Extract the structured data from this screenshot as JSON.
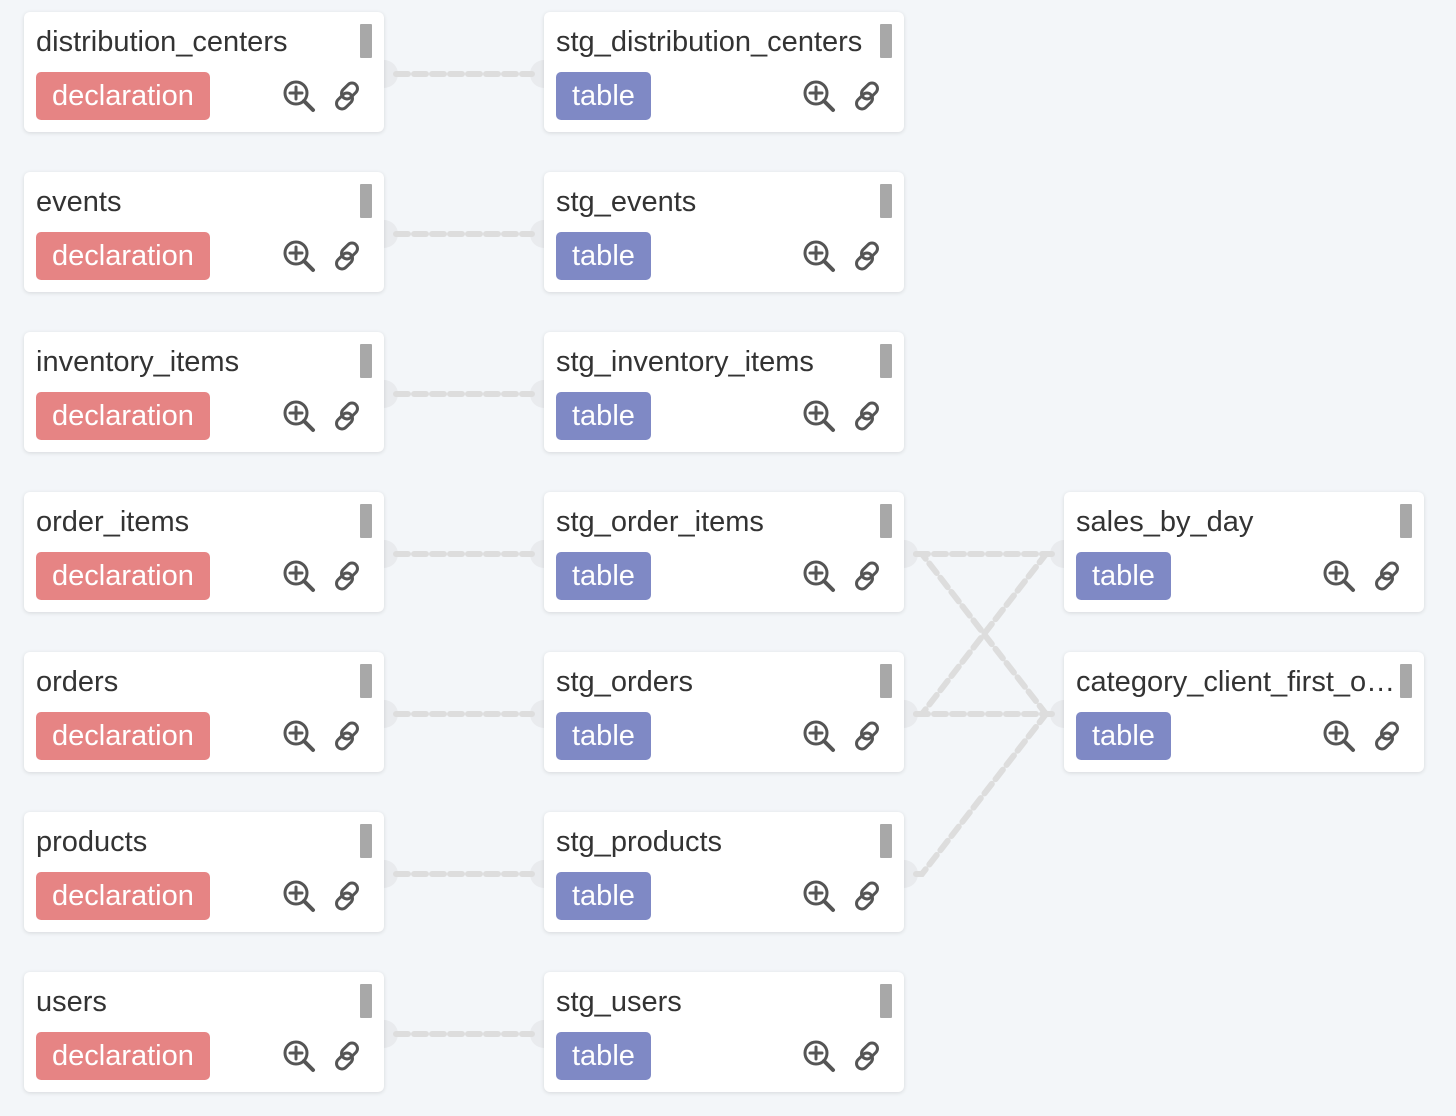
{
  "colors": {
    "background": "#f3f6f9",
    "declaration_badge": "#e68484",
    "table_badge": "#7f89c5",
    "edge": "#dddddd",
    "icon": "#555555"
  },
  "nodes": [
    {
      "id": "distribution_centers",
      "title": "distribution_centers",
      "badge": "declaration",
      "column": 0,
      "row": 0
    },
    {
      "id": "events",
      "title": "events",
      "badge": "declaration",
      "column": 0,
      "row": 1
    },
    {
      "id": "inventory_items",
      "title": "inventory_items",
      "badge": "declaration",
      "column": 0,
      "row": 2
    },
    {
      "id": "order_items",
      "title": "order_items",
      "badge": "declaration",
      "column": 0,
      "row": 3
    },
    {
      "id": "orders",
      "title": "orders",
      "badge": "declaration",
      "column": 0,
      "row": 4
    },
    {
      "id": "products",
      "title": "products",
      "badge": "declaration",
      "column": 0,
      "row": 5
    },
    {
      "id": "users",
      "title": "users",
      "badge": "declaration",
      "column": 0,
      "row": 6
    },
    {
      "id": "stg_distribution_centers",
      "title": "stg_distribution_centers",
      "badge": "table",
      "column": 1,
      "row": 0
    },
    {
      "id": "stg_events",
      "title": "stg_events",
      "badge": "table",
      "column": 1,
      "row": 1
    },
    {
      "id": "stg_inventory_items",
      "title": "stg_inventory_items",
      "badge": "table",
      "column": 1,
      "row": 2
    },
    {
      "id": "stg_order_items",
      "title": "stg_order_items",
      "badge": "table",
      "column": 1,
      "row": 3
    },
    {
      "id": "stg_orders",
      "title": "stg_orders",
      "badge": "table",
      "column": 1,
      "row": 4
    },
    {
      "id": "stg_products",
      "title": "stg_products",
      "badge": "table",
      "column": 1,
      "row": 5
    },
    {
      "id": "stg_users",
      "title": "stg_users",
      "badge": "table",
      "column": 1,
      "row": 6
    },
    {
      "id": "sales_by_day",
      "title": "sales_by_day",
      "badge": "table",
      "column": 2,
      "row": 3
    },
    {
      "id": "category_client_first_order",
      "title": "category_client_first_or...",
      "badge": "table",
      "column": 2,
      "row": 4
    }
  ],
  "edges": [
    {
      "from": "distribution_centers",
      "to": "stg_distribution_centers"
    },
    {
      "from": "events",
      "to": "stg_events"
    },
    {
      "from": "inventory_items",
      "to": "stg_inventory_items"
    },
    {
      "from": "order_items",
      "to": "stg_order_items"
    },
    {
      "from": "orders",
      "to": "stg_orders"
    },
    {
      "from": "products",
      "to": "stg_products"
    },
    {
      "from": "users",
      "to": "stg_users"
    },
    {
      "from": "stg_order_items",
      "to": "sales_by_day"
    },
    {
      "from": "stg_order_items",
      "to": "category_client_first_order"
    },
    {
      "from": "stg_orders",
      "to": "sales_by_day"
    },
    {
      "from": "stg_orders",
      "to": "category_client_first_order"
    },
    {
      "from": "stg_products",
      "to": "category_client_first_order"
    }
  ],
  "icons": {
    "zoom": "zoom-in-icon",
    "link": "link-icon"
  }
}
